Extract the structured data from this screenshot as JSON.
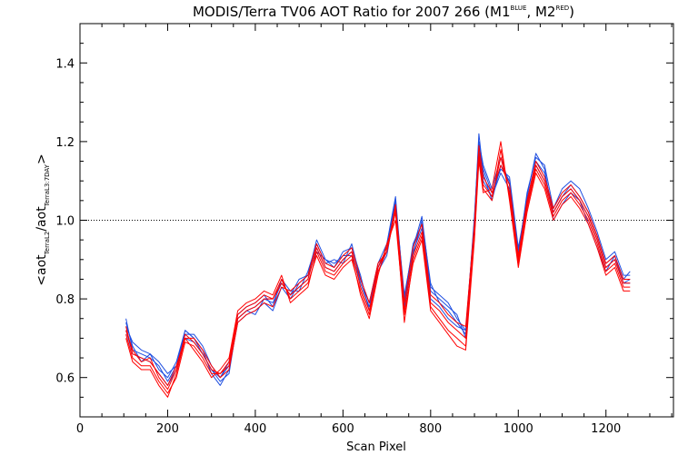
{
  "chart_data": {
    "type": "line",
    "title_main": "MODIS/Terra TV06 AOT Ratio for 2007 266 (M1",
    "title_sup1": "BLUE",
    "title_mid": ", M2",
    "title_sup2": "RED",
    "title_end": ")",
    "xlabel": "Scan Pixel",
    "ylabel_parts": {
      "open": "<aot",
      "sub1": "TerraL2",
      "slash": "/aot",
      "sub2": "TerraL3:7DAY",
      "close": ">"
    },
    "xlim": [
      0,
      1354
    ],
    "ylim": [
      0.5,
      1.5
    ],
    "x_ticks": [
      0,
      200,
      400,
      600,
      800,
      1000,
      1200
    ],
    "y_ticks": [
      0.6,
      0.8,
      1.0,
      1.2,
      1.4
    ],
    "x_tick_labels": [
      "0",
      "200",
      "400",
      "600",
      "800",
      "1000",
      "1200"
    ],
    "y_tick_labels": [
      "0.6",
      "0.8",
      "1.0",
      "1.2",
      "1.4"
    ],
    "reference_line": 1.0,
    "grid": false,
    "legend": "none",
    "series_colors": {
      "M1": "#1f4fe0",
      "M2": "#ff0000"
    },
    "mean_profile": {
      "x": [
        105,
        120,
        140,
        160,
        180,
        200,
        220,
        240,
        260,
        280,
        300,
        320,
        340,
        360,
        380,
        400,
        420,
        440,
        460,
        480,
        500,
        520,
        540,
        560,
        580,
        600,
        620,
        640,
        660,
        680,
        700,
        720,
        740,
        760,
        780,
        800,
        820,
        840,
        860,
        880,
        900,
        910,
        920,
        940,
        960,
        980,
        1000,
        1020,
        1040,
        1060,
        1080,
        1100,
        1120,
        1140,
        1160,
        1180,
        1200,
        1220,
        1240,
        1255
      ],
      "y": [
        0.72,
        0.66,
        0.65,
        0.64,
        0.61,
        0.58,
        0.62,
        0.7,
        0.69,
        0.66,
        0.62,
        0.6,
        0.63,
        0.75,
        0.77,
        0.78,
        0.8,
        0.79,
        0.84,
        0.81,
        0.83,
        0.85,
        0.93,
        0.88,
        0.87,
        0.9,
        0.92,
        0.84,
        0.78,
        0.88,
        0.93,
        1.05,
        0.78,
        0.92,
        0.98,
        0.8,
        0.78,
        0.75,
        0.73,
        0.72,
        0.98,
        1.18,
        1.1,
        1.06,
        1.12,
        1.08,
        0.9,
        1.04,
        1.14,
        1.1,
        1.02,
        1.06,
        1.08,
        1.05,
        1.01,
        0.95,
        0.88,
        0.9,
        0.84,
        0.84
      ]
    },
    "series": [
      {
        "color_key": "M1",
        "values": [
          0.74,
          0.68,
          0.64,
          0.66,
          0.62,
          0.6,
          0.64,
          0.72,
          0.7,
          0.67,
          0.61,
          0.58,
          0.62,
          0.74,
          0.76,
          0.77,
          0.79,
          0.77,
          0.83,
          0.8,
          0.84,
          0.86,
          0.95,
          0.9,
          0.88,
          0.92,
          0.93,
          0.86,
          0.77,
          0.87,
          0.91,
          1.04,
          0.8,
          0.94,
          0.99,
          0.82,
          0.8,
          0.78,
          0.76,
          0.7,
          1.0,
          1.22,
          1.12,
          1.05,
          1.14,
          1.1,
          0.92,
          1.06,
          1.17,
          1.13,
          1.0,
          1.04,
          1.07,
          1.05,
          0.99,
          0.93,
          0.87,
          0.91,
          0.85,
          0.87
        ]
      },
      {
        "color_key": "M1",
        "values": [
          0.75,
          0.67,
          0.66,
          0.65,
          0.63,
          0.59,
          0.63,
          0.71,
          0.71,
          0.68,
          0.63,
          0.6,
          0.64,
          0.76,
          0.78,
          0.79,
          0.81,
          0.78,
          0.85,
          0.82,
          0.82,
          0.87,
          0.94,
          0.89,
          0.9,
          0.89,
          0.94,
          0.85,
          0.79,
          0.89,
          0.94,
          1.06,
          0.79,
          0.91,
          1.0,
          0.84,
          0.79,
          0.77,
          0.74,
          0.71,
          1.01,
          1.2,
          1.14,
          1.08,
          1.16,
          1.09,
          0.91,
          1.07,
          1.16,
          1.14,
          1.03,
          1.08,
          1.1,
          1.08,
          1.03,
          0.97,
          0.9,
          0.92,
          0.86,
          0.86
        ]
      },
      {
        "color_key": "M1",
        "values": [
          0.73,
          0.69,
          0.67,
          0.66,
          0.64,
          0.61,
          0.63,
          0.72,
          0.7,
          0.66,
          0.62,
          0.59,
          0.61,
          0.75,
          0.77,
          0.76,
          0.8,
          0.8,
          0.84,
          0.81,
          0.85,
          0.86,
          0.92,
          0.9,
          0.89,
          0.91,
          0.91,
          0.85,
          0.79,
          0.88,
          0.92,
          1.04,
          0.81,
          0.93,
          1.01,
          0.83,
          0.81,
          0.79,
          0.75,
          0.72,
          1.0,
          1.19,
          1.13,
          1.07,
          1.13,
          1.11,
          0.93,
          1.05,
          1.15,
          1.12,
          1.02,
          1.06,
          1.09,
          1.06,
          1.02,
          0.96,
          0.89,
          0.91,
          0.84,
          0.85
        ]
      },
      {
        "color_key": "M1",
        "values": [
          0.72,
          0.66,
          0.65,
          0.64,
          0.61,
          0.58,
          0.62,
          0.7,
          0.69,
          0.66,
          0.62,
          0.6,
          0.63,
          0.75,
          0.77,
          0.78,
          0.8,
          0.79,
          0.84,
          0.81,
          0.83,
          0.85,
          0.93,
          0.88,
          0.87,
          0.9,
          0.92,
          0.84,
          0.78,
          0.88,
          0.93,
          1.05,
          0.78,
          0.92,
          0.98,
          0.8,
          0.78,
          0.75,
          0.73,
          0.72,
          0.98,
          1.18,
          1.1,
          1.06,
          1.12,
          1.08,
          0.9,
          1.04,
          1.14,
          1.1,
          1.02,
          1.06,
          1.08,
          1.05,
          1.01,
          0.95,
          0.88,
          0.9,
          0.84,
          0.84
        ]
      },
      {
        "color_key": "M2",
        "values": [
          0.71,
          0.65,
          0.63,
          0.63,
          0.59,
          0.56,
          0.6,
          0.69,
          0.68,
          0.65,
          0.61,
          0.61,
          0.64,
          0.76,
          0.78,
          0.79,
          0.81,
          0.8,
          0.85,
          0.8,
          0.82,
          0.84,
          0.91,
          0.86,
          0.85,
          0.88,
          0.9,
          0.82,
          0.76,
          0.87,
          0.92,
          1.02,
          0.74,
          0.9,
          0.96,
          0.78,
          0.75,
          0.72,
          0.7,
          0.68,
          0.96,
          1.16,
          1.08,
          1.05,
          1.18,
          1.06,
          0.89,
          1.03,
          1.13,
          1.09,
          1.01,
          1.05,
          1.07,
          1.04,
          1.0,
          0.94,
          0.87,
          0.89,
          0.83,
          0.83
        ]
      },
      {
        "color_key": "M2",
        "values": [
          0.7,
          0.64,
          0.62,
          0.62,
          0.58,
          0.55,
          0.61,
          0.7,
          0.67,
          0.64,
          0.6,
          0.62,
          0.65,
          0.77,
          0.79,
          0.8,
          0.82,
          0.81,
          0.86,
          0.79,
          0.81,
          0.83,
          0.92,
          0.87,
          0.86,
          0.89,
          0.91,
          0.81,
          0.75,
          0.86,
          0.94,
          1.0,
          0.76,
          0.89,
          0.95,
          0.77,
          0.74,
          0.71,
          0.68,
          0.67,
          0.95,
          1.15,
          1.07,
          1.08,
          1.2,
          1.05,
          0.88,
          1.02,
          1.12,
          1.08,
          1.0,
          1.04,
          1.06,
          1.03,
          0.99,
          0.93,
          0.86,
          0.88,
          0.82,
          0.82
        ]
      },
      {
        "color_key": "M2",
        "values": [
          0.72,
          0.67,
          0.64,
          0.65,
          0.6,
          0.57,
          0.62,
          0.71,
          0.69,
          0.66,
          0.62,
          0.61,
          0.63,
          0.75,
          0.77,
          0.78,
          0.8,
          0.8,
          0.84,
          0.81,
          0.83,
          0.85,
          0.93,
          0.88,
          0.87,
          0.9,
          0.92,
          0.83,
          0.77,
          0.88,
          0.93,
          1.03,
          0.77,
          0.91,
          0.97,
          0.79,
          0.77,
          0.74,
          0.72,
          0.7,
          0.97,
          1.17,
          1.09,
          1.06,
          1.16,
          1.07,
          0.9,
          1.04,
          1.14,
          1.1,
          1.02,
          1.06,
          1.08,
          1.05,
          1.01,
          0.95,
          0.88,
          0.9,
          0.84,
          0.84
        ]
      },
      {
        "color_key": "M2",
        "values": [
          0.73,
          0.66,
          0.65,
          0.64,
          0.61,
          0.58,
          0.63,
          0.7,
          0.7,
          0.67,
          0.63,
          0.6,
          0.62,
          0.74,
          0.76,
          0.77,
          0.79,
          0.78,
          0.83,
          0.82,
          0.84,
          0.86,
          0.94,
          0.89,
          0.88,
          0.91,
          0.93,
          0.85,
          0.79,
          0.89,
          0.92,
          1.04,
          0.79,
          0.93,
          0.99,
          0.81,
          0.79,
          0.76,
          0.74,
          0.73,
          0.99,
          1.19,
          1.11,
          1.07,
          1.14,
          1.09,
          0.91,
          1.05,
          1.15,
          1.11,
          1.03,
          1.07,
          1.09,
          1.06,
          1.02,
          0.96,
          0.89,
          0.91,
          0.85,
          0.85
        ]
      }
    ]
  }
}
